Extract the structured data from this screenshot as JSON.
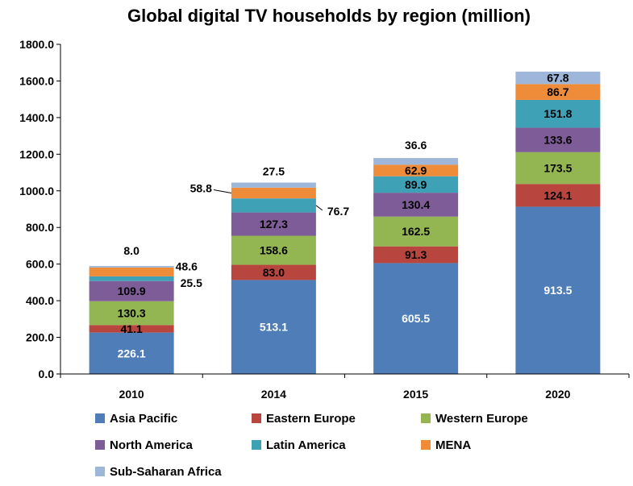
{
  "chart_data": {
    "type": "bar",
    "stacked": true,
    "title": "Global digital TV households by region (million)",
    "xlabel": "",
    "ylabel": "",
    "ylim": [
      0,
      1800
    ],
    "y_ticks": [
      "0.0",
      "200.0",
      "400.0",
      "600.0",
      "800.0",
      "1000.0",
      "1200.0",
      "1400.0",
      "1600.0",
      "1800.0"
    ],
    "categories": [
      "2010",
      "2014",
      "2015",
      "2020"
    ],
    "legend_position": "bottom",
    "series": [
      {
        "name": "Asia Pacific",
        "color": "#4F7DB8",
        "values": [
          226.1,
          513.1,
          605.5,
          913.5
        ],
        "labels": [
          "226.1",
          "513.1",
          "605.5",
          "913.5"
        ]
      },
      {
        "name": "Eastern Europe",
        "color": "#B8463F",
        "values": [
          41.1,
          83.0,
          91.3,
          124.1
        ],
        "labels": [
          "41.1",
          "83.0",
          "91.3",
          "124.1"
        ]
      },
      {
        "name": "Western Europe",
        "color": "#94B652",
        "values": [
          130.3,
          158.6,
          162.5,
          173.5
        ],
        "labels": [
          "130.3",
          "158.6",
          "162.5",
          "173.5"
        ]
      },
      {
        "name": "North America",
        "color": "#7D5C97",
        "values": [
          109.9,
          127.3,
          130.4,
          133.6
        ],
        "labels": [
          "109.9",
          "127.3",
          "130.4",
          "133.6"
        ]
      },
      {
        "name": "Latin America",
        "color": "#3FA1B6",
        "values": [
          25.5,
          76.7,
          89.9,
          151.8
        ],
        "labels": [
          "25.5",
          "76.7",
          "89.9",
          "151.8"
        ]
      },
      {
        "name": "MENA",
        "color": "#EE8C3A",
        "values": [
          48.6,
          58.8,
          62.9,
          86.7
        ],
        "labels": [
          "48.6",
          "58.8",
          "62.9",
          "86.7"
        ]
      },
      {
        "name": "Sub-Saharan Africa",
        "color": "#9EB6DA",
        "values": [
          8.0,
          27.5,
          36.6,
          67.8
        ],
        "labels": [
          "8.0",
          "27.5",
          "36.6",
          "67.8"
        ]
      }
    ]
  }
}
